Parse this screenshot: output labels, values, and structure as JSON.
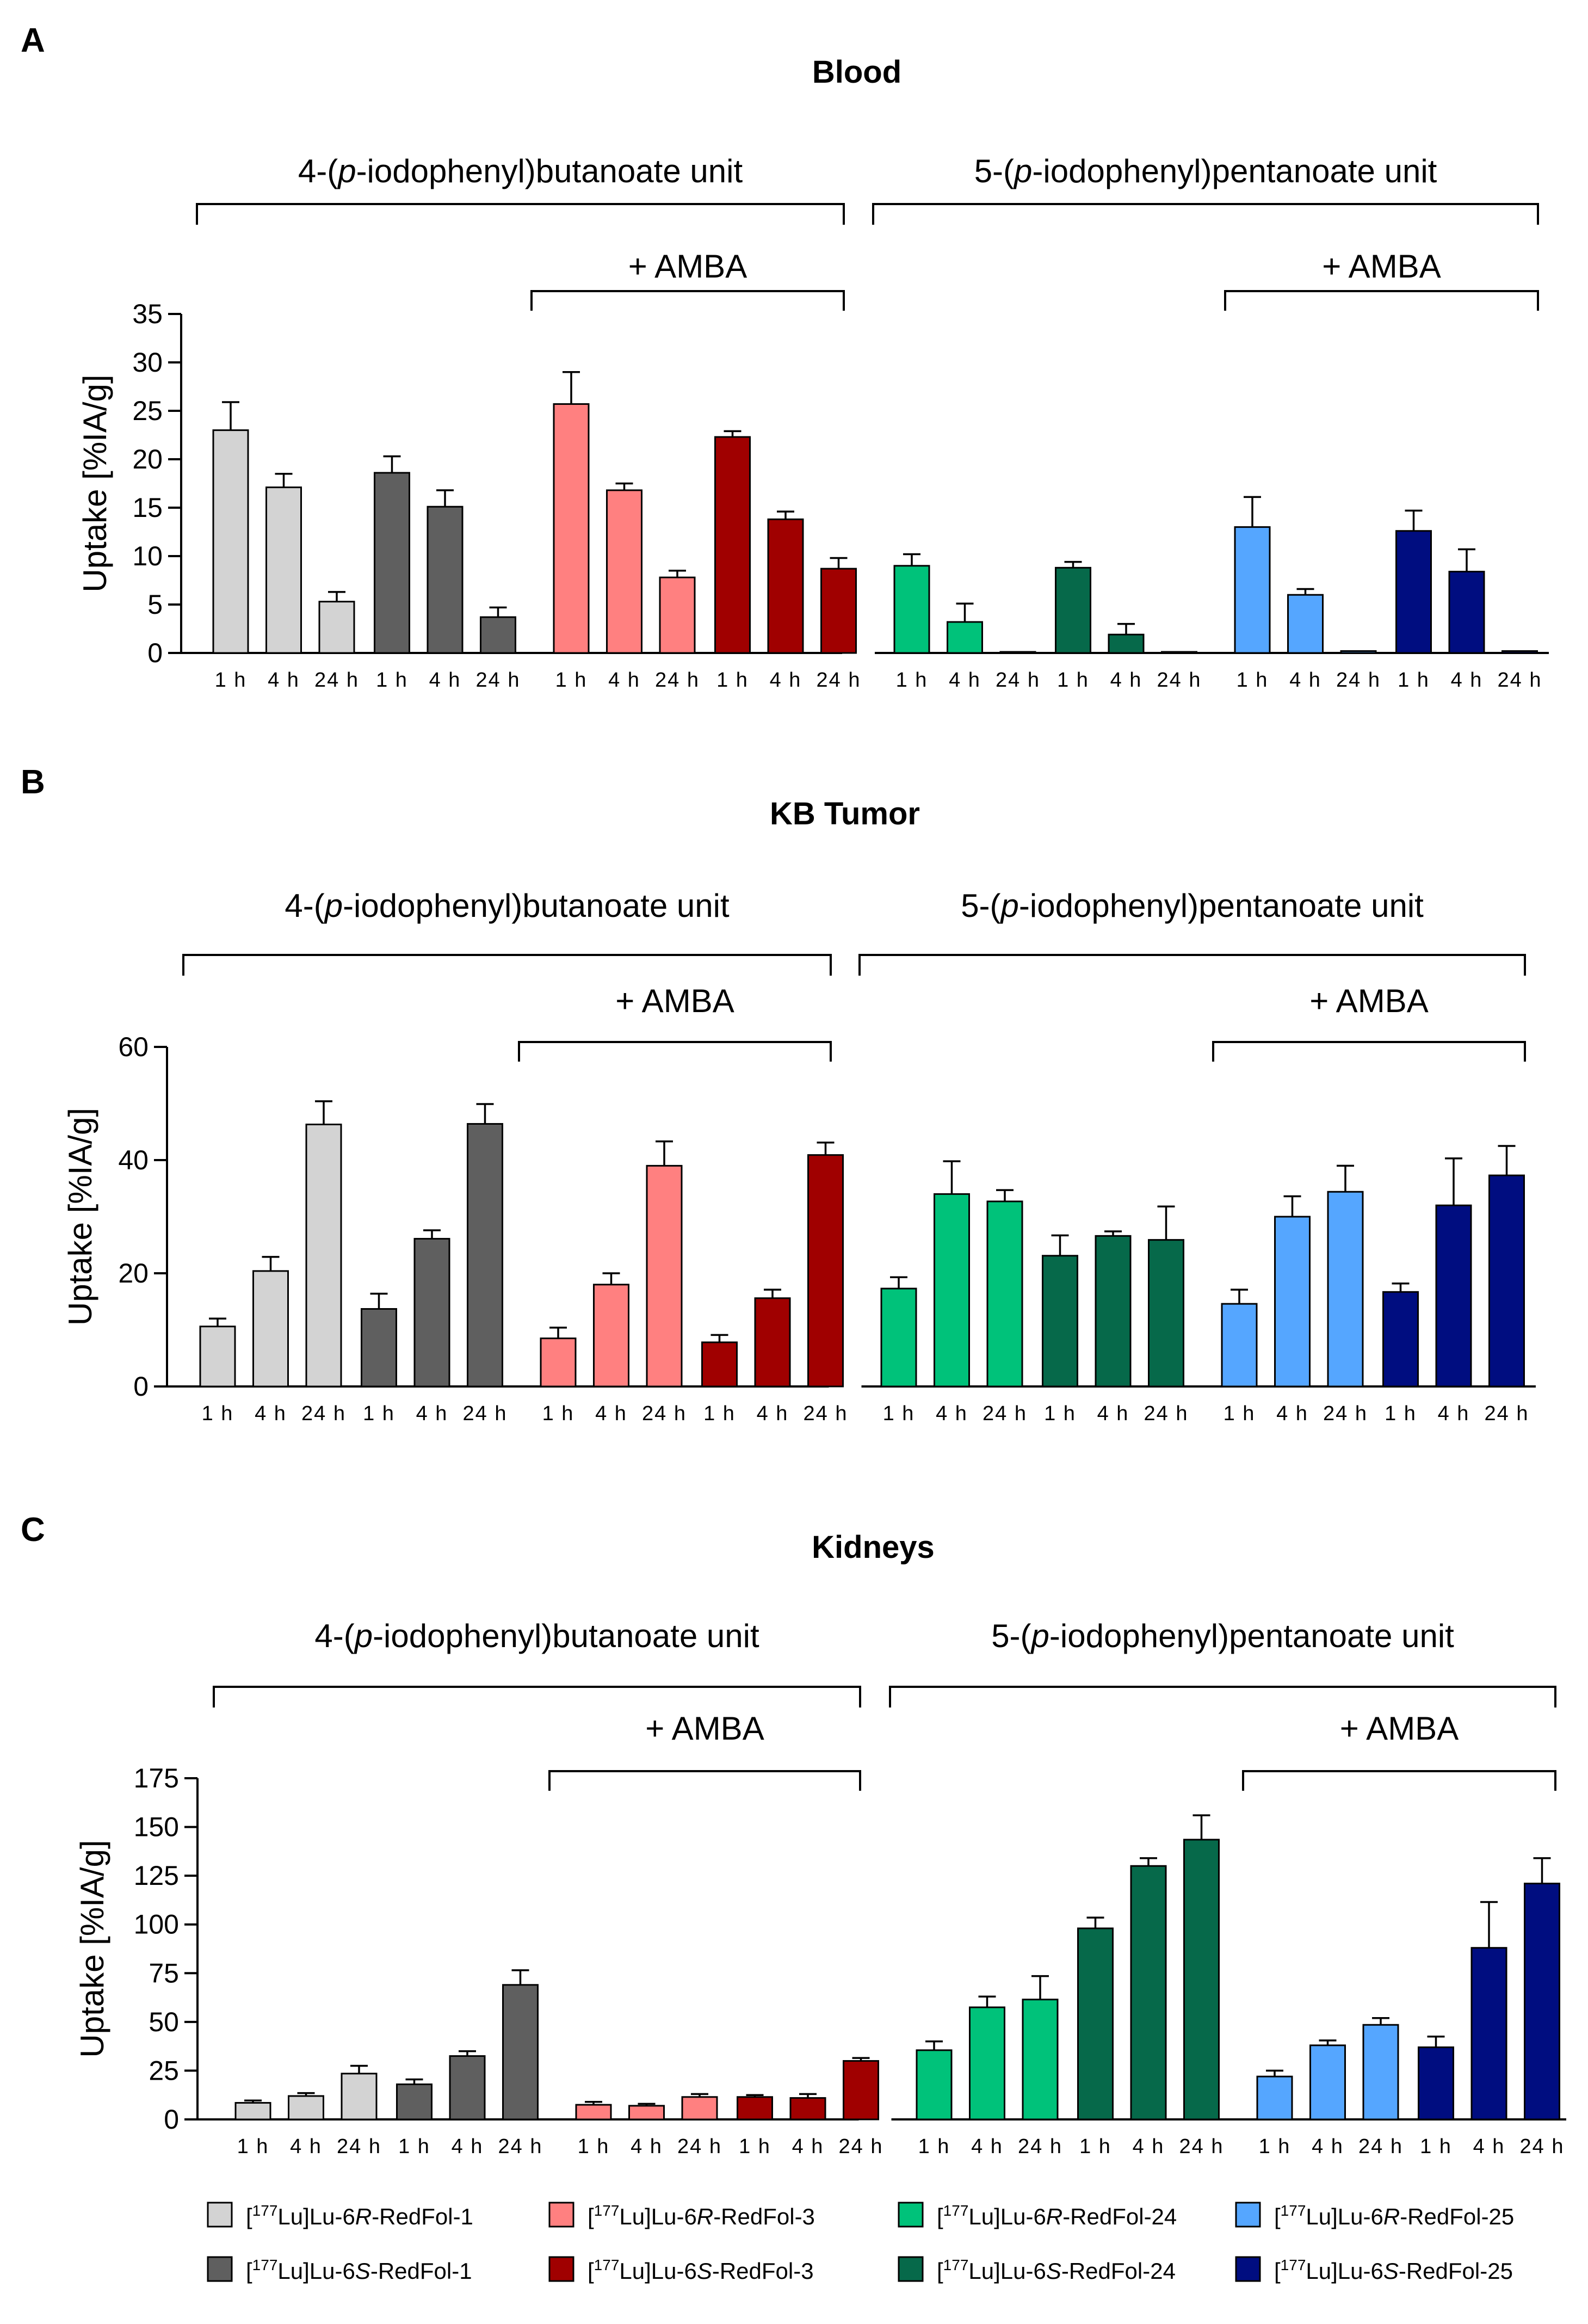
{
  "figure": {
    "legend": [
      {
        "key": "6R-RedFol-1",
        "prefix": "[",
        "isotope": "177",
        "mid": "Lu]Lu-6",
        "stereo": "R",
        "suffix": "-RedFol-1",
        "color": "#d3d3d3"
      },
      {
        "key": "6R-RedFol-3",
        "prefix": "[",
        "isotope": "177",
        "mid": "Lu]Lu-6",
        "stereo": "R",
        "suffix": "-RedFol-3",
        "color": "#ff8080"
      },
      {
        "key": "6R-RedFol-24",
        "prefix": "[",
        "isotope": "177",
        "mid": "Lu]Lu-6",
        "stereo": "R",
        "suffix": "-RedFol-24",
        "color": "#00c27a"
      },
      {
        "key": "6R-RedFol-25",
        "prefix": "[",
        "isotope": "177",
        "mid": "Lu]Lu-6",
        "stereo": "R",
        "suffix": "-RedFol-25",
        "color": "#55a6ff"
      },
      {
        "key": "6S-RedFol-1",
        "prefix": "[",
        "isotope": "177",
        "mid": "Lu]Lu-6",
        "stereo": "S",
        "suffix": "-RedFol-1",
        "color": "#5f5f5f"
      },
      {
        "key": "6S-RedFol-3",
        "prefix": "[",
        "isotope": "177",
        "mid": "Lu]Lu-6",
        "stereo": "S",
        "suffix": "-RedFol-3",
        "color": "#a00000"
      },
      {
        "key": "6S-RedFol-24",
        "prefix": "[",
        "isotope": "177",
        "mid": "Lu]Lu-6",
        "stereo": "S",
        "suffix": "-RedFol-24",
        "color": "#06694a"
      },
      {
        "key": "6S-RedFol-25",
        "prefix": "[",
        "isotope": "177",
        "mid": "Lu]Lu-6",
        "stereo": "S",
        "suffix": "-RedFol-25",
        "color": "#000d80"
      }
    ]
  },
  "chart_data": [
    {
      "panel": "A",
      "type": "bar",
      "title": "Blood",
      "ylabel": "Uptake [%IA/g]",
      "ylim": [
        0,
        35
      ],
      "yticks": [
        0,
        5,
        10,
        15,
        20,
        25,
        30,
        35
      ],
      "group_labels": {
        "left_pre": "4-(",
        "left_ital": "p",
        "left_post": "-iodophenyl)butanoate unit",
        "right_pre": "5-(",
        "right_ital": "p",
        "right_post": "-iodophenyl)pentanoate unit",
        "amba": "+ AMBA"
      },
      "time_labels": [
        "1 h",
        "4 h",
        "24 h"
      ],
      "series": [
        {
          "name": "[177Lu]Lu-6R-RedFol-1",
          "values": [
            23.0,
            17.1,
            5.3
          ],
          "errors": [
            2.9,
            1.4,
            1.0
          ]
        },
        {
          "name": "[177Lu]Lu-6S-RedFol-1",
          "values": [
            18.6,
            15.1,
            3.7
          ],
          "errors": [
            1.7,
            1.7,
            1.0
          ]
        },
        {
          "name": "[177Lu]Lu-6R-RedFol-3",
          "values": [
            25.7,
            16.8,
            7.8
          ],
          "errors": [
            3.3,
            0.7,
            0.7
          ]
        },
        {
          "name": "[177Lu]Lu-6S-RedFol-3",
          "values": [
            22.3,
            13.8,
            8.7
          ],
          "errors": [
            0.6,
            0.8,
            1.1
          ]
        },
        {
          "name": "[177Lu]Lu-6R-RedFol-24",
          "values": [
            9.0,
            3.2,
            0.0
          ],
          "errors": [
            1.2,
            1.9,
            0.0
          ]
        },
        {
          "name": "[177Lu]Lu-6S-RedFol-24",
          "values": [
            8.8,
            1.9,
            0.0
          ],
          "errors": [
            0.6,
            1.1,
            0.0
          ]
        },
        {
          "name": "[177Lu]Lu-6R-RedFol-25",
          "values": [
            13.0,
            6.0,
            0.2
          ],
          "errors": [
            3.1,
            0.6,
            0.0
          ]
        },
        {
          "name": "[177Lu]Lu-6S-RedFol-25",
          "values": [
            12.6,
            8.4,
            0.2
          ],
          "errors": [
            2.1,
            2.3,
            0.0
          ]
        }
      ]
    },
    {
      "panel": "B",
      "type": "bar",
      "title": "KB Tumor",
      "ylabel": "Uptake [%IA/g]",
      "ylim": [
        0,
        60
      ],
      "yticks": [
        0,
        20,
        40,
        60
      ],
      "group_labels": {
        "left_pre": "4-(",
        "left_ital": "p",
        "left_post": "-iodophenyl)butanoate unit",
        "right_pre": "5-(",
        "right_ital": "p",
        "right_post": "-iodophenyl)pentanoate unit",
        "amba": "+ AMBA"
      },
      "time_labels": [
        "1 h",
        "4 h",
        "24 h"
      ],
      "series": [
        {
          "name": "[177Lu]Lu-6R-RedFol-1",
          "values": [
            10.6,
            20.4,
            46.3
          ],
          "errors": [
            1.4,
            2.5,
            4.1
          ]
        },
        {
          "name": "[177Lu]Lu-6S-RedFol-1",
          "values": [
            13.7,
            26.1,
            46.4
          ],
          "errors": [
            2.7,
            1.5,
            3.5
          ]
        },
        {
          "name": "[177Lu]Lu-6R-RedFol-3",
          "values": [
            8.5,
            18.0,
            39.0
          ],
          "errors": [
            1.9,
            2.0,
            4.3
          ]
        },
        {
          "name": "[177Lu]Lu-6S-RedFol-3",
          "values": [
            7.8,
            15.6,
            40.9
          ],
          "errors": [
            1.3,
            1.5,
            2.2
          ]
        },
        {
          "name": "[177Lu]Lu-6R-RedFol-24",
          "values": [
            17.3,
            34.0,
            32.7
          ],
          "errors": [
            2.0,
            5.8,
            2.0
          ]
        },
        {
          "name": "[177Lu]Lu-6S-RedFol-24",
          "values": [
            23.1,
            26.6,
            25.9
          ],
          "errors": [
            3.6,
            0.8,
            5.9
          ]
        },
        {
          "name": "[177Lu]Lu-6R-RedFol-25",
          "values": [
            14.6,
            30.0,
            34.4
          ],
          "errors": [
            2.5,
            3.6,
            4.6
          ]
        },
        {
          "name": "[177Lu]Lu-6S-RedFol-25",
          "values": [
            16.7,
            32.0,
            37.3
          ],
          "errors": [
            1.5,
            8.3,
            5.2
          ]
        }
      ]
    },
    {
      "panel": "C",
      "type": "bar",
      "title": "Kidneys",
      "ylabel": "Uptake [%IA/g]",
      "ylim": [
        0,
        175
      ],
      "yticks": [
        0,
        25,
        50,
        75,
        100,
        125,
        150,
        175
      ],
      "group_labels": {
        "left_pre": "4-(",
        "left_ital": "p",
        "left_post": "-iodophenyl)butanoate unit",
        "right_pre": "5-(",
        "right_ital": "p",
        "right_post": "-iodophenyl)pentanoate unit",
        "amba": "+ AMBA"
      },
      "time_labels": [
        "1 h",
        "4 h",
        "24 h"
      ],
      "series": [
        {
          "name": "[177Lu]Lu-6R-RedFol-1",
          "values": [
            8.5,
            12.0,
            23.5
          ],
          "errors": [
            1.2,
            1.5,
            4.0
          ]
        },
        {
          "name": "[177Lu]Lu-6S-RedFol-1",
          "values": [
            18.0,
            32.5,
            69.0
          ],
          "errors": [
            2.5,
            2.5,
            7.5
          ]
        },
        {
          "name": "[177Lu]Lu-6R-RedFol-3",
          "values": [
            7.5,
            7.0,
            11.5
          ],
          "errors": [
            1.5,
            1.0,
            1.5
          ]
        },
        {
          "name": "[177Lu]Lu-6S-RedFol-3",
          "values": [
            11.5,
            11.0,
            30.0
          ],
          "errors": [
            1.0,
            2.0,
            1.5
          ]
        },
        {
          "name": "[177Lu]Lu-6R-RedFol-24",
          "values": [
            35.5,
            57.5,
            61.5
          ],
          "errors": [
            4.5,
            5.5,
            12.0
          ]
        },
        {
          "name": "[177Lu]Lu-6S-RedFol-24",
          "values": [
            98.0,
            130.0,
            143.5
          ],
          "errors": [
            5.5,
            4.0,
            12.5
          ]
        },
        {
          "name": "[177Lu]Lu-6R-RedFol-25",
          "values": [
            22.0,
            38.0,
            48.5
          ],
          "errors": [
            3.0,
            2.5,
            3.5
          ]
        },
        {
          "name": "[177Lu]Lu-6S-RedFol-25",
          "values": [
            37.0,
            88.0,
            121.0
          ],
          "errors": [
            5.5,
            23.5,
            13.0
          ]
        }
      ]
    }
  ]
}
